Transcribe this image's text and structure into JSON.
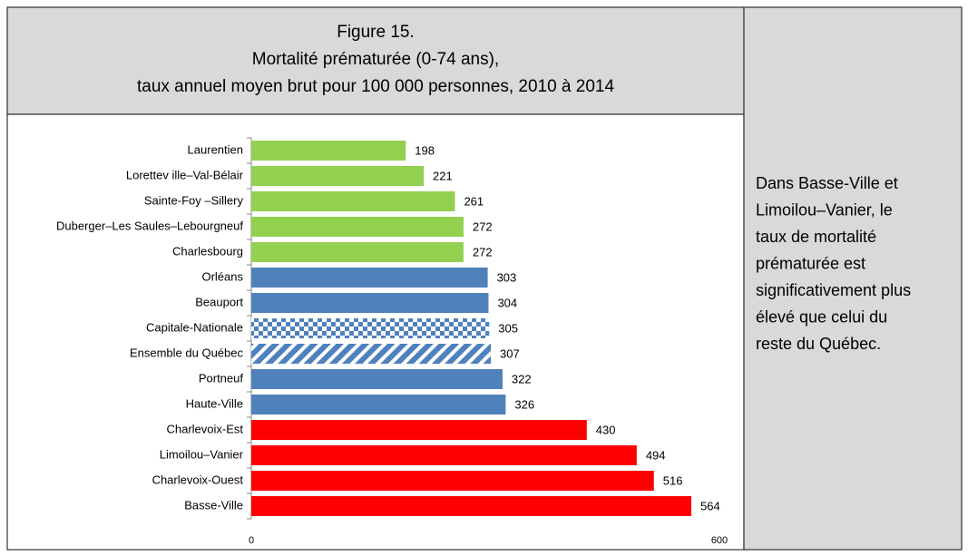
{
  "chart_data": {
    "type": "bar",
    "orientation": "horizontal",
    "title": [
      "Figure 15.",
      "Mortalité prématurée (0-74 ans),",
      "taux annuel moyen brut pour 100 000 personnes, 2010 à 2014"
    ],
    "categories": [
      "Laurentien",
      "Lorettev ille–Val-Bélair",
      "Sainte-Foy –Sillery",
      "Duberger–Les Saules–Lebourgneuf",
      "Charlesbourg",
      "Orléans",
      "Beauport",
      "Capitale-Nationale",
      "Ensemble du Québec",
      "Portneuf",
      "Haute-Ville",
      "Charlevoix-Est",
      "Limoilou–Vanier",
      "Charlevoix-Ouest",
      "Basse-Ville"
    ],
    "values": [
      198,
      221,
      261,
      272,
      272,
      303,
      304,
      305,
      307,
      322,
      326,
      430,
      494,
      516,
      564
    ],
    "colors": [
      "#92d050",
      "#92d050",
      "#92d050",
      "#92d050",
      "#92d050",
      "#4f81bd",
      "#4f81bd",
      "#4f81bd",
      "#4f81bd",
      "#4f81bd",
      "#4f81bd",
      "#ff0000",
      "#ff0000",
      "#ff0000",
      "#ff0000"
    ],
    "patterns": [
      null,
      null,
      null,
      null,
      null,
      null,
      null,
      "checker",
      "stripes",
      null,
      null,
      null,
      null,
      null,
      null
    ],
    "xlim": [
      0,
      600
    ],
    "xticks": [
      0,
      600
    ],
    "grid": false,
    "note_lines": [
      "Dans Basse-Ville et",
      "Limoilou–Vanier, le",
      "taux de mortalité",
      "prématurée est",
      "significativement plus",
      "élevé que celui du",
      "reste du Québec."
    ]
  }
}
